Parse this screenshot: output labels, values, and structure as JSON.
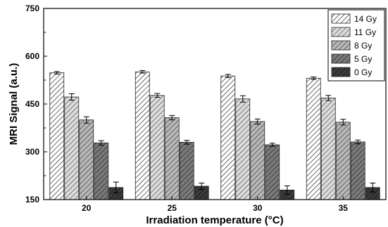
{
  "chart_data": {
    "type": "bar",
    "xlabel": "Irradiation temperature (°C)",
    "ylabel": "MRI Signal (a.u.)",
    "ylim": [
      150,
      750
    ],
    "yticks": [
      150,
      300,
      450,
      600,
      750
    ],
    "categories": [
      "20",
      "25",
      "30",
      "35"
    ],
    "legend_position": "top-right",
    "grid": false,
    "series": [
      {
        "name": "14 Gy",
        "values": [
          548,
          551,
          538,
          531
        ],
        "errors": [
          4,
          4,
          5,
          4
        ],
        "color": "#ffffff",
        "hatch": "#1a1a1a"
      },
      {
        "name": "11 Gy",
        "values": [
          472,
          477,
          466,
          469
        ],
        "errors": [
          10,
          6,
          10,
          8
        ],
        "color": "#dcdcdc",
        "hatch": "#444444"
      },
      {
        "name": "8 Gy",
        "values": [
          400,
          407,
          395,
          393
        ],
        "errors": [
          10,
          7,
          8,
          9
        ],
        "color": "#b8b8b8",
        "hatch": "#333333"
      },
      {
        "name": "5 Gy",
        "values": [
          328,
          330,
          322,
          331
        ],
        "errors": [
          7,
          6,
          5,
          6
        ],
        "color": "#7a7a7a",
        "hatch": "#222222"
      },
      {
        "name": "0 Gy",
        "values": [
          188,
          192,
          180,
          188
        ],
        "errors": [
          17,
          10,
          13,
          14
        ],
        "color": "#3a3a3a",
        "hatch": "#111111"
      }
    ]
  }
}
